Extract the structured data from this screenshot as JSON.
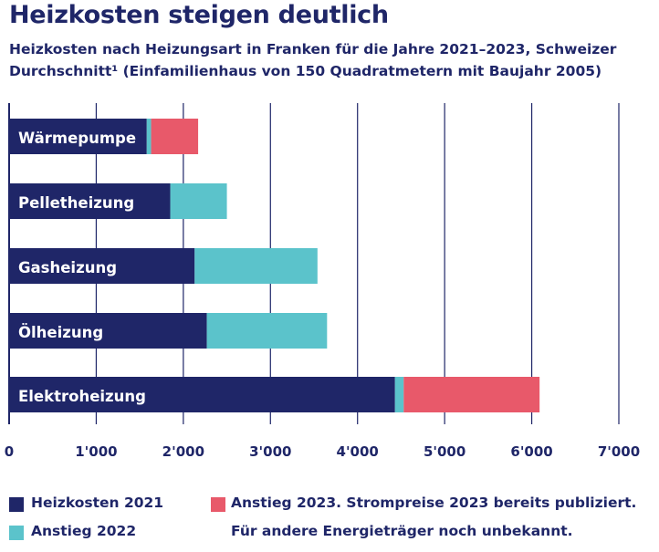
{
  "title": "Heizkosten steigen deutlich",
  "subtitle": "Heizkosten nach Heizungsart in Franken für die Jahre 2021–2023, Schweizer Durchschnitt¹ (Einfamilienhaus von 150 Quadratmetern mit Baujahr 2005)",
  "chart_data": {
    "type": "bar",
    "orientation": "horizontal",
    "stacked": true,
    "categories": [
      "Wärmepumpe",
      "Pelletheizung",
      "Gasheizung",
      "Ölheizung",
      "Elektroheizung"
    ],
    "series": [
      {
        "name": "Heizkosten 2021",
        "color": "#1f2668",
        "values": [
          1580,
          1850,
          2130,
          2270,
          4430
        ]
      },
      {
        "name": "Anstieg 2022",
        "color": "#5bc3cb",
        "values": [
          50,
          650,
          1410,
          1380,
          100
        ]
      },
      {
        "name": "Anstieg 2023. Strompreise 2023 bereits publiziert.",
        "color": "#e8596a",
        "values": [
          540,
          0,
          0,
          0,
          1560
        ]
      }
    ],
    "xlim": [
      0,
      7000
    ],
    "xticks": [
      0,
      1000,
      2000,
      3000,
      4000,
      5000,
      6000,
      7000
    ],
    "xtick_labels": [
      "0",
      "1'000",
      "2'000",
      "3'000",
      "4'000",
      "5'000",
      "6'000",
      "7'000"
    ],
    "grid": true,
    "legend_position": "bottom",
    "legend_note": "Für andere Energieträger noch unbekannt."
  }
}
